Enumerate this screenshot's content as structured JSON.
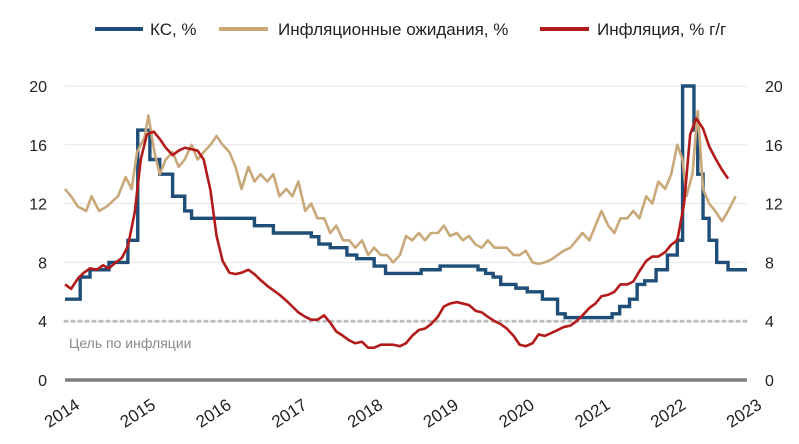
{
  "chart_data": {
    "type": "line",
    "title": "",
    "xlabel": "",
    "ylabel": "",
    "xlim": [
      2014,
      2023
    ],
    "ylim": [
      0,
      20
    ],
    "y_ticks": [
      0,
      4,
      8,
      12,
      16,
      20
    ],
    "x_ticks": [
      "2014",
      "2015",
      "2016",
      "2017",
      "2018",
      "2019",
      "2020",
      "2021",
      "2022",
      "2023"
    ],
    "grid": "horizontal",
    "legend": "top",
    "target_line": {
      "value": 4,
      "label": "Цель по инфляции",
      "color": "#bdbdbd"
    },
    "series": [
      {
        "name": "КС, %",
        "color": "#1f4e79",
        "step": true,
        "points": [
          [
            2014.0,
            5.5
          ],
          [
            2014.2,
            7.0
          ],
          [
            2014.33,
            7.5
          ],
          [
            2014.58,
            8.0
          ],
          [
            2014.83,
            9.5
          ],
          [
            2014.96,
            17.0
          ],
          [
            2015.12,
            15.0
          ],
          [
            2015.25,
            14.0
          ],
          [
            2015.42,
            12.5
          ],
          [
            2015.58,
            11.5
          ],
          [
            2015.67,
            11.0
          ],
          [
            2016.5,
            10.5
          ],
          [
            2016.75,
            10.0
          ],
          [
            2017.25,
            9.75
          ],
          [
            2017.35,
            9.25
          ],
          [
            2017.5,
            9.0
          ],
          [
            2017.72,
            8.5
          ],
          [
            2017.85,
            8.25
          ],
          [
            2018.08,
            7.75
          ],
          [
            2018.23,
            7.25
          ],
          [
            2018.7,
            7.5
          ],
          [
            2018.95,
            7.75
          ],
          [
            2019.45,
            7.5
          ],
          [
            2019.55,
            7.25
          ],
          [
            2019.65,
            7.0
          ],
          [
            2019.75,
            6.5
          ],
          [
            2019.95,
            6.25
          ],
          [
            2020.1,
            6.0
          ],
          [
            2020.3,
            5.5
          ],
          [
            2020.5,
            4.5
          ],
          [
            2020.6,
            4.25
          ],
          [
            2021.22,
            4.5
          ],
          [
            2021.32,
            5.0
          ],
          [
            2021.45,
            5.5
          ],
          [
            2021.55,
            6.5
          ],
          [
            2021.65,
            6.75
          ],
          [
            2021.8,
            7.5
          ],
          [
            2021.95,
            8.5
          ],
          [
            2022.08,
            9.5
          ],
          [
            2022.15,
            20.0
          ],
          [
            2022.3,
            17.0
          ],
          [
            2022.35,
            14.0
          ],
          [
            2022.42,
            11.0
          ],
          [
            2022.5,
            9.5
          ],
          [
            2022.6,
            8.0
          ],
          [
            2022.75,
            7.5
          ],
          [
            2023.0,
            7.5
          ]
        ]
      },
      {
        "name": "Инфляционные ожидания, %",
        "color": "#c9a87a",
        "step": false,
        "points": [
          [
            2014.0,
            13.0
          ],
          [
            2014.08,
            12.5
          ],
          [
            2014.17,
            11.8
          ],
          [
            2014.28,
            11.5
          ],
          [
            2014.35,
            12.5
          ],
          [
            2014.45,
            11.5
          ],
          [
            2014.55,
            11.8
          ],
          [
            2014.7,
            12.5
          ],
          [
            2014.8,
            13.8
          ],
          [
            2014.88,
            13.0
          ],
          [
            2014.95,
            15.5
          ],
          [
            2015.05,
            16.5
          ],
          [
            2015.1,
            18.0
          ],
          [
            2015.18,
            15.5
          ],
          [
            2015.25,
            14.0
          ],
          [
            2015.33,
            15.0
          ],
          [
            2015.42,
            15.5
          ],
          [
            2015.5,
            14.5
          ],
          [
            2015.58,
            15.0
          ],
          [
            2015.67,
            16.0
          ],
          [
            2015.75,
            15.0
          ],
          [
            2015.83,
            15.5
          ],
          [
            2015.92,
            16.0
          ],
          [
            2016.0,
            16.6
          ],
          [
            2016.08,
            16.0
          ],
          [
            2016.17,
            15.5
          ],
          [
            2016.25,
            14.5
          ],
          [
            2016.33,
            13.0
          ],
          [
            2016.42,
            14.5
          ],
          [
            2016.5,
            13.5
          ],
          [
            2016.58,
            14.0
          ],
          [
            2016.67,
            13.5
          ],
          [
            2016.75,
            14.0
          ],
          [
            2016.83,
            12.5
          ],
          [
            2016.92,
            13.0
          ],
          [
            2017.0,
            12.5
          ],
          [
            2017.08,
            13.5
          ],
          [
            2017.17,
            11.5
          ],
          [
            2017.25,
            12.0
          ],
          [
            2017.33,
            11.0
          ],
          [
            2017.42,
            11.0
          ],
          [
            2017.5,
            10.0
          ],
          [
            2017.58,
            10.5
          ],
          [
            2017.67,
            9.5
          ],
          [
            2017.75,
            9.5
          ],
          [
            2017.83,
            9.0
          ],
          [
            2017.92,
            9.5
          ],
          [
            2018.0,
            8.5
          ],
          [
            2018.08,
            9.0
          ],
          [
            2018.17,
            8.5
          ],
          [
            2018.25,
            8.5
          ],
          [
            2018.33,
            8.0
          ],
          [
            2018.42,
            8.5
          ],
          [
            2018.5,
            9.8
          ],
          [
            2018.58,
            9.5
          ],
          [
            2018.67,
            10.0
          ],
          [
            2018.75,
            9.5
          ],
          [
            2018.83,
            10.0
          ],
          [
            2018.92,
            10.0
          ],
          [
            2019.0,
            10.5
          ],
          [
            2019.08,
            9.8
          ],
          [
            2019.17,
            10.0
          ],
          [
            2019.25,
            9.5
          ],
          [
            2019.33,
            9.8
          ],
          [
            2019.42,
            9.2
          ],
          [
            2019.5,
            9.0
          ],
          [
            2019.58,
            9.5
          ],
          [
            2019.67,
            9.0
          ],
          [
            2019.75,
            9.0
          ],
          [
            2019.83,
            9.0
          ],
          [
            2019.92,
            8.5
          ],
          [
            2020.0,
            8.5
          ],
          [
            2020.08,
            8.8
          ],
          [
            2020.17,
            8.0
          ],
          [
            2020.25,
            7.9
          ],
          [
            2020.33,
            8.0
          ],
          [
            2020.42,
            8.2
          ],
          [
            2020.5,
            8.5
          ],
          [
            2020.58,
            8.8
          ],
          [
            2020.67,
            9.0
          ],
          [
            2020.75,
            9.5
          ],
          [
            2020.83,
            10.0
          ],
          [
            2020.92,
            9.5
          ],
          [
            2021.0,
            10.5
          ],
          [
            2021.08,
            11.5
          ],
          [
            2021.17,
            10.5
          ],
          [
            2021.25,
            10.0
          ],
          [
            2021.33,
            11.0
          ],
          [
            2021.42,
            11.0
          ],
          [
            2021.5,
            11.5
          ],
          [
            2021.58,
            11.0
          ],
          [
            2021.67,
            12.5
          ],
          [
            2021.75,
            12.0
          ],
          [
            2021.83,
            13.5
          ],
          [
            2021.92,
            13.0
          ],
          [
            2022.0,
            14.0
          ],
          [
            2022.08,
            16.0
          ],
          [
            2022.15,
            15.0
          ],
          [
            2022.2,
            12.5
          ],
          [
            2022.28,
            14.0
          ],
          [
            2022.35,
            18.3
          ],
          [
            2022.42,
            13.0
          ],
          [
            2022.5,
            12.0
          ],
          [
            2022.58,
            11.5
          ],
          [
            2022.67,
            10.8
          ],
          [
            2022.75,
            11.5
          ],
          [
            2022.85,
            12.5
          ]
        ]
      },
      {
        "name": "Инфляция, % г/г",
        "color": "#b31b1b",
        "step": false,
        "points": [
          [
            2014.0,
            6.5
          ],
          [
            2014.08,
            6.2
          ],
          [
            2014.17,
            6.9
          ],
          [
            2014.25,
            7.3
          ],
          [
            2014.33,
            7.6
          ],
          [
            2014.42,
            7.5
          ],
          [
            2014.5,
            7.8
          ],
          [
            2014.58,
            7.6
          ],
          [
            2014.67,
            8.0
          ],
          [
            2014.75,
            8.3
          ],
          [
            2014.83,
            9.1
          ],
          [
            2014.92,
            11.4
          ],
          [
            2015.0,
            15.0
          ],
          [
            2015.08,
            16.7
          ],
          [
            2015.17,
            16.9
          ],
          [
            2015.25,
            16.4
          ],
          [
            2015.33,
            15.8
          ],
          [
            2015.42,
            15.3
          ],
          [
            2015.5,
            15.6
          ],
          [
            2015.58,
            15.8
          ],
          [
            2015.67,
            15.7
          ],
          [
            2015.75,
            15.6
          ],
          [
            2015.83,
            15.0
          ],
          [
            2015.92,
            12.9
          ],
          [
            2016.0,
            9.8
          ],
          [
            2016.08,
            8.1
          ],
          [
            2016.17,
            7.3
          ],
          [
            2016.25,
            7.2
          ],
          [
            2016.33,
            7.3
          ],
          [
            2016.42,
            7.5
          ],
          [
            2016.5,
            7.2
          ],
          [
            2016.58,
            6.8
          ],
          [
            2016.67,
            6.4
          ],
          [
            2016.75,
            6.1
          ],
          [
            2016.83,
            5.8
          ],
          [
            2016.92,
            5.4
          ],
          [
            2017.0,
            5.0
          ],
          [
            2017.08,
            4.6
          ],
          [
            2017.17,
            4.3
          ],
          [
            2017.25,
            4.1
          ],
          [
            2017.33,
            4.1
          ],
          [
            2017.42,
            4.4
          ],
          [
            2017.5,
            3.9
          ],
          [
            2017.58,
            3.3
          ],
          [
            2017.67,
            3.0
          ],
          [
            2017.75,
            2.7
          ],
          [
            2017.83,
            2.5
          ],
          [
            2017.92,
            2.6
          ],
          [
            2018.0,
            2.2
          ],
          [
            2018.08,
            2.2
          ],
          [
            2018.17,
            2.4
          ],
          [
            2018.25,
            2.4
          ],
          [
            2018.33,
            2.4
          ],
          [
            2018.42,
            2.3
          ],
          [
            2018.5,
            2.5
          ],
          [
            2018.58,
            3.0
          ],
          [
            2018.67,
            3.4
          ],
          [
            2018.75,
            3.5
          ],
          [
            2018.83,
            3.8
          ],
          [
            2018.92,
            4.3
          ],
          [
            2019.0,
            5.0
          ],
          [
            2019.08,
            5.2
          ],
          [
            2019.17,
            5.3
          ],
          [
            2019.25,
            5.2
          ],
          [
            2019.33,
            5.1
          ],
          [
            2019.42,
            4.7
          ],
          [
            2019.5,
            4.6
          ],
          [
            2019.58,
            4.3
          ],
          [
            2019.67,
            4.0
          ],
          [
            2019.75,
            3.8
          ],
          [
            2019.83,
            3.5
          ],
          [
            2019.92,
            3.0
          ],
          [
            2020.0,
            2.4
          ],
          [
            2020.08,
            2.3
          ],
          [
            2020.17,
            2.5
          ],
          [
            2020.25,
            3.1
          ],
          [
            2020.33,
            3.0
          ],
          [
            2020.42,
            3.2
          ],
          [
            2020.5,
            3.4
          ],
          [
            2020.58,
            3.6
          ],
          [
            2020.67,
            3.7
          ],
          [
            2020.75,
            4.0
          ],
          [
            2020.83,
            4.4
          ],
          [
            2020.92,
            4.9
          ],
          [
            2021.0,
            5.2
          ],
          [
            2021.08,
            5.7
          ],
          [
            2021.17,
            5.8
          ],
          [
            2021.25,
            6.0
          ],
          [
            2021.33,
            6.5
          ],
          [
            2021.42,
            6.5
          ],
          [
            2021.5,
            6.7
          ],
          [
            2021.58,
            7.4
          ],
          [
            2021.67,
            8.1
          ],
          [
            2021.75,
            8.4
          ],
          [
            2021.83,
            8.4
          ],
          [
            2021.92,
            8.7
          ],
          [
            2022.0,
            9.2
          ],
          [
            2022.08,
            9.5
          ],
          [
            2022.17,
            12.0
          ],
          [
            2022.25,
            16.7
          ],
          [
            2022.33,
            17.8
          ],
          [
            2022.42,
            17.1
          ],
          [
            2022.5,
            15.9
          ],
          [
            2022.58,
            15.1
          ],
          [
            2022.67,
            14.3
          ],
          [
            2022.75,
            13.7
          ]
        ]
      }
    ]
  }
}
